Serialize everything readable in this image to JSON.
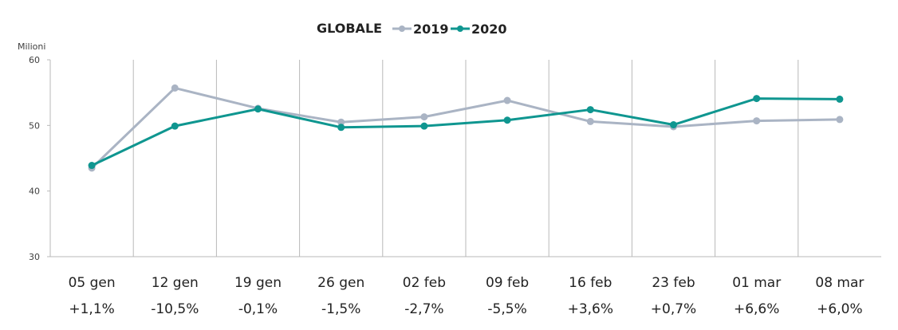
{
  "chart_data": {
    "type": "line",
    "title": "GLOBALE",
    "ylabel": "Milioni",
    "ylim": [
      30,
      60
    ],
    "yticks": [
      30,
      40,
      50,
      60
    ],
    "categories": [
      "05 gen",
      "12 gen",
      "19 gen",
      "26 gen",
      "02 feb",
      "09 feb",
      "16 feb",
      "23 feb",
      "01 mar",
      "08 mar"
    ],
    "changes": [
      "+1,1%",
      "-10,5%",
      "-0,1%",
      "-1,5%",
      "-2,7%",
      "-5,5%",
      "+3,6%",
      "+0,7%",
      "+6,6%",
      "+6,0%"
    ],
    "series": [
      {
        "name": "2019",
        "color": "#aab4c4",
        "values": [
          43.5,
          55.7,
          52.6,
          50.5,
          51.3,
          53.8,
          50.6,
          49.8,
          50.7,
          50.9
        ]
      },
      {
        "name": "2020",
        "color": "#0f9690",
        "values": [
          43.9,
          49.9,
          52.5,
          49.7,
          49.9,
          50.8,
          52.4,
          50.1,
          54.1,
          54.0
        ]
      }
    ],
    "grid": "vertical",
    "legend_position": "top"
  }
}
